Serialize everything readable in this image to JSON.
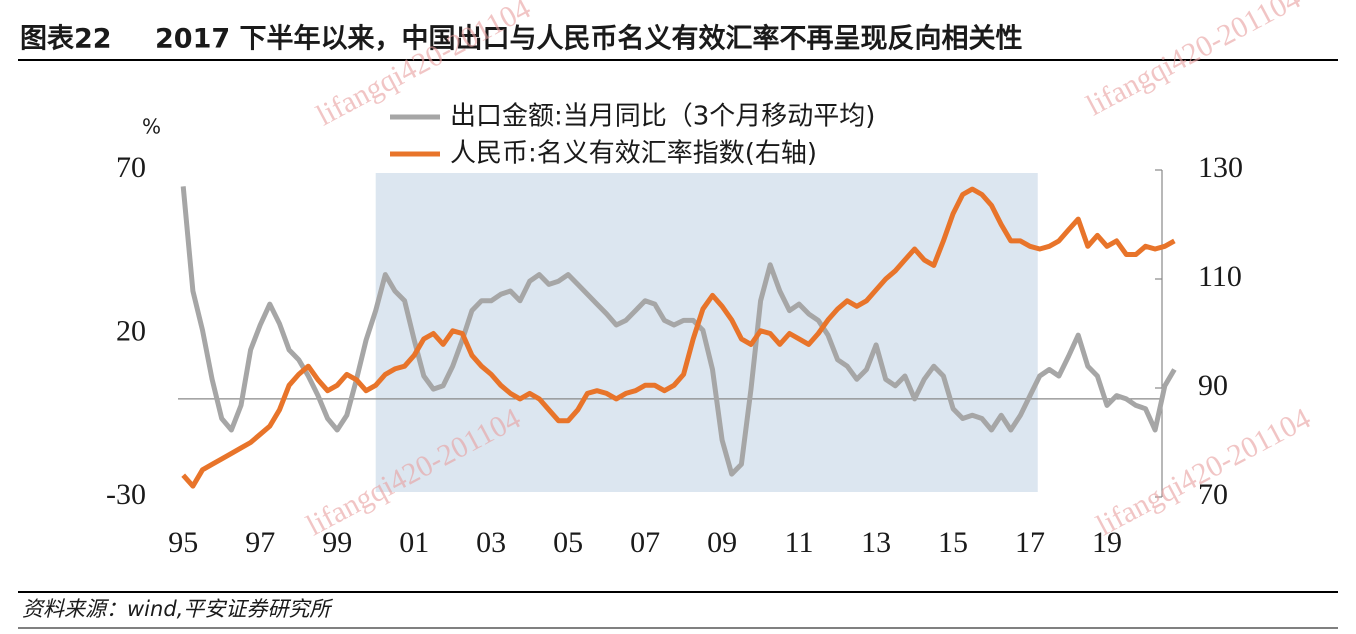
{
  "chart_data": {
    "type": "line",
    "figure_label": "图表22",
    "title": "2017 下半年以来，中国出口与人民币名义有效汇率不再呈现反向相关性",
    "y_unit": "%",
    "source": "资料来源：wind,平安证券研究所",
    "watermark": "lifangqi420-201104",
    "x": [
      1995,
      1995.25,
      1995.5,
      1995.75,
      1996,
      1996.25,
      1996.5,
      1996.75,
      1997,
      1997.25,
      1997.5,
      1997.75,
      1998,
      1998.25,
      1998.5,
      1998.75,
      1999,
      1999.25,
      1999.5,
      1999.75,
      2000,
      2000.25,
      2000.5,
      2000.75,
      2001,
      2001.25,
      2001.5,
      2001.75,
      2002,
      2002.25,
      2002.5,
      2002.75,
      2003,
      2003.25,
      2003.5,
      2003.75,
      2004,
      2004.25,
      2004.5,
      2004.75,
      2005,
      2005.25,
      2005.5,
      2005.75,
      2006,
      2006.25,
      2006.5,
      2006.75,
      2007,
      2007.25,
      2007.5,
      2007.75,
      2008,
      2008.25,
      2008.5,
      2008.75,
      2009,
      2009.25,
      2009.5,
      2009.75,
      2010,
      2010.25,
      2010.5,
      2010.75,
      2011,
      2011.25,
      2011.5,
      2011.75,
      2012,
      2012.25,
      2012.5,
      2012.75,
      2013,
      2013.25,
      2013.5,
      2013.75,
      2014,
      2014.25,
      2014.5,
      2014.75,
      2015,
      2015.25,
      2015.5,
      2015.75,
      2016,
      2016.25,
      2016.5,
      2016.75,
      2017,
      2017.25,
      2017.5,
      2017.75,
      2018,
      2018.25,
      2018.5,
      2018.75,
      2019,
      2019.25,
      2019.5,
      2019.75,
      2020,
      2020.25,
      2020.5,
      2020.75
    ],
    "series": [
      {
        "name": "出口金额:当月同比（3个月移动平均)",
        "color": "#a6a6a6",
        "axis": "y",
        "values": [
          65,
          33,
          21,
          6,
          -6,
          -9.5,
          -2,
          15,
          22.6,
          29,
          23,
          15,
          12,
          7,
          1,
          -6,
          -9.5,
          -5,
          6,
          18,
          27,
          38,
          33,
          30,
          18,
          7,
          3,
          4,
          10,
          18,
          27,
          30,
          30,
          32,
          33,
          30,
          36,
          38,
          35,
          36,
          38,
          35,
          32,
          29,
          26,
          22.6,
          24,
          27,
          30,
          29,
          24,
          22.6,
          24,
          24,
          21,
          9,
          -12.6,
          -23,
          -20,
          3,
          30,
          41,
          33,
          27,
          29,
          26,
          24,
          19.5,
          12,
          10,
          6,
          9,
          16.5,
          6,
          4,
          7,
          0,
          6,
          10,
          7,
          -3,
          -6,
          -5,
          -6,
          -9.5,
          -5,
          -9.5,
          -5,
          1,
          7,
          9,
          7,
          13,
          19.5,
          10,
          7,
          -2,
          1,
          0,
          -2,
          -3,
          -9.5,
          4,
          9
        ]
      },
      {
        "name": "人民币:名义有效汇率指数(右轴)",
        "color": "#e8742a",
        "axis": "y2",
        "values": [
          74,
          72,
          75,
          76,
          77,
          78,
          79,
          80,
          81.5,
          83,
          86,
          90.5,
          92.5,
          94,
          91.5,
          89.5,
          90.5,
          92.5,
          91.5,
          89.5,
          90.5,
          92.5,
          93.5,
          94,
          96,
          99,
          100,
          98,
          100.5,
          100,
          96,
          94,
          92.5,
          90.5,
          89,
          88,
          89,
          88,
          86,
          84,
          84,
          86,
          89,
          89.5,
          89,
          88,
          89,
          89.5,
          90.5,
          90.5,
          89.5,
          90.5,
          92.5,
          99,
          104.5,
          107,
          105,
          102.5,
          99,
          98,
          100.5,
          100,
          98,
          100,
          99,
          98,
          100,
          102.5,
          104.5,
          106,
          105,
          106,
          108,
          110,
          111.5,
          113.5,
          115.5,
          113.5,
          112.5,
          117,
          122,
          125.5,
          126.5,
          125.5,
          123.5,
          120,
          117,
          117,
          116,
          115.5,
          116,
          117,
          119,
          121,
          116,
          118,
          116,
          117,
          114.5,
          114.5,
          116,
          115.5,
          116,
          117
        ]
      }
    ],
    "xlim": [
      1994.5,
      2021
    ],
    "xticks": [
      {
        "value": 1995,
        "label": "95"
      },
      {
        "value": 1997,
        "label": "97"
      },
      {
        "value": 1999,
        "label": "99"
      },
      {
        "value": 2001,
        "label": "01"
      },
      {
        "value": 2003,
        "label": "03"
      },
      {
        "value": 2005,
        "label": "05"
      },
      {
        "value": 2007,
        "label": "07"
      },
      {
        "value": 2009,
        "label": "09"
      },
      {
        "value": 2011,
        "label": "11"
      },
      {
        "value": 2013,
        "label": "13"
      },
      {
        "value": 2015,
        "label": "15"
      },
      {
        "value": 2017,
        "label": "17"
      },
      {
        "value": 2019,
        "label": "19"
      }
    ],
    "ylim": [
      -30,
      70
    ],
    "yticks": [
      -30,
      20,
      70
    ],
    "y2lim": [
      70,
      130
    ],
    "y2ticks": [
      70,
      90,
      110,
      130
    ],
    "reference_line": 0,
    "highlight_x": [
      2000,
      2017.2
    ],
    "highlight_color": "#dce6f0"
  }
}
